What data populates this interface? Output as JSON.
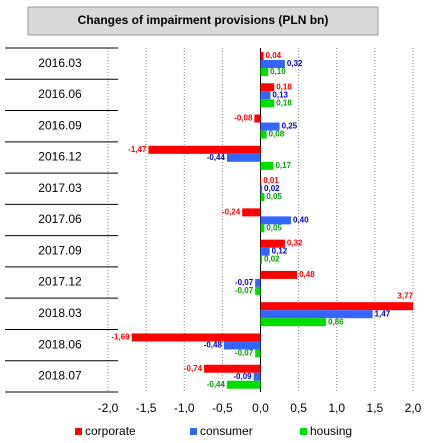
{
  "chart_data": {
    "type": "hbar",
    "title": "Changes of impairment provisions (PLN bn)",
    "categories": [
      "2016.03",
      "2016.06",
      "2016.09",
      "2016.12",
      "2017.03",
      "2017.06",
      "2017.09",
      "2017.12",
      "2018.03",
      "2018.06",
      "2018.07"
    ],
    "series": [
      {
        "name": "corporate",
        "color": "#ff0000",
        "values": [
          0.04,
          0.18,
          -0.08,
          -1.47,
          0.01,
          -0.24,
          0.32,
          0.48,
          3.77,
          -1.69,
          -0.74
        ],
        "value_labels": [
          "0,04",
          "0,18",
          "-0,08",
          "-1,47",
          "0,01",
          "-0,24",
          "0,32",
          "0,48",
          "3,77",
          "-1,69",
          "-0,74"
        ]
      },
      {
        "name": "consumer",
        "color": "#3366ff",
        "values": [
          0.32,
          0.13,
          0.25,
          -0.44,
          0.02,
          0.4,
          0.12,
          -0.07,
          1.47,
          -0.48,
          -0.09
        ],
        "value_labels": [
          "0,32",
          "0,13",
          "0,25",
          "-0,44",
          "0,02",
          "0,40",
          "0,12",
          "-0,07",
          "1,47",
          "-0,48",
          "-0,09"
        ]
      },
      {
        "name": "housing",
        "color": "#00dd00",
        "values": [
          0.1,
          0.18,
          0.08,
          0.17,
          0.05,
          0.05,
          0.02,
          -0.07,
          0.86,
          -0.07,
          -0.44
        ],
        "value_labels": [
          "0,10",
          "0,18",
          "0,08",
          "0,17",
          "0,05",
          "0,05",
          "0,02",
          "-0,07",
          "0,86",
          "-0,07",
          "-0,44"
        ]
      }
    ],
    "xlim": [
      -2,
      2
    ],
    "xticks": [
      {
        "value": -2,
        "label": "-2,0"
      },
      {
        "value": -1.5,
        "label": "-1,5"
      },
      {
        "value": -1,
        "label": "-1,0"
      },
      {
        "value": -0.5,
        "label": "-0,5"
      },
      {
        "value": 0,
        "label": "0,0"
      },
      {
        "value": 0.5,
        "label": "0,5"
      },
      {
        "value": 1,
        "label": "1,0"
      },
      {
        "value": 1.5,
        "label": "1,5"
      },
      {
        "value": 2,
        "label": "2,0"
      }
    ],
    "grid": true,
    "legend": "bottom"
  }
}
